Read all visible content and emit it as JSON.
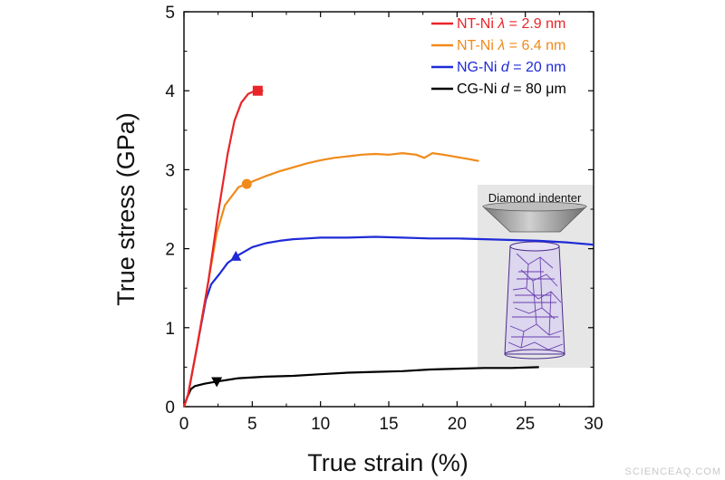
{
  "chart_data": {
    "type": "line",
    "xlabel": "True strain (%)",
    "ylabel": "True stress (GPa)",
    "xlim": [
      0,
      30
    ],
    "ylim": [
      0,
      5
    ],
    "xticks": [
      0,
      5,
      10,
      15,
      20,
      25,
      30
    ],
    "yticks": [
      0,
      1,
      2,
      3,
      4,
      5
    ],
    "grid": false,
    "legend_position": "top-right",
    "series": [
      {
        "name_parts": [
          "NT-Ni ",
          "λ",
          " = 2.9 nm"
        ],
        "color": "#e8262a",
        "marker": "square",
        "marker_at": [
          5.4,
          4.0
        ],
        "points": [
          [
            0,
            0
          ],
          [
            0.3,
            0.15
          ],
          [
            1,
            0.8
          ],
          [
            1.8,
            1.6
          ],
          [
            2.5,
            2.45
          ],
          [
            3.2,
            3.2
          ],
          [
            3.7,
            3.62
          ],
          [
            4.2,
            3.85
          ],
          [
            4.7,
            3.96
          ],
          [
            5.2,
            4.0
          ],
          [
            5.8,
            4.0
          ]
        ]
      },
      {
        "name_parts": [
          "NT-Ni ",
          "λ",
          " = 6.4 nm"
        ],
        "color": "#f08a1a",
        "marker": "circle",
        "marker_at": [
          4.6,
          2.82
        ],
        "points": [
          [
            0,
            0
          ],
          [
            0.3,
            0.15
          ],
          [
            1,
            0.8
          ],
          [
            1.8,
            1.6
          ],
          [
            2.4,
            2.2
          ],
          [
            3.0,
            2.55
          ],
          [
            4.0,
            2.78
          ],
          [
            5,
            2.85
          ],
          [
            6,
            2.92
          ],
          [
            7,
            2.98
          ],
          [
            8,
            3.03
          ],
          [
            9,
            3.08
          ],
          [
            10,
            3.12
          ],
          [
            11,
            3.15
          ],
          [
            12,
            3.17
          ],
          [
            13,
            3.19
          ],
          [
            14,
            3.2
          ],
          [
            15,
            3.19
          ],
          [
            16,
            3.21
          ],
          [
            17,
            3.19
          ],
          [
            17.6,
            3.15
          ],
          [
            18.2,
            3.21
          ],
          [
            19,
            3.19
          ],
          [
            20,
            3.16
          ],
          [
            21,
            3.13
          ],
          [
            21.6,
            3.11
          ]
        ]
      },
      {
        "name_parts": [
          "NG-Ni ",
          "d",
          " = 20 nm"
        ],
        "color": "#1f2ad6",
        "marker": "triangle-up",
        "marker_at": [
          3.8,
          1.9
        ],
        "points": [
          [
            0,
            0
          ],
          [
            0.3,
            0.15
          ],
          [
            1,
            0.8
          ],
          [
            1.6,
            1.35
          ],
          [
            2.0,
            1.55
          ],
          [
            2.6,
            1.68
          ],
          [
            3.2,
            1.82
          ],
          [
            4,
            1.92
          ],
          [
            5,
            2.02
          ],
          [
            6,
            2.07
          ],
          [
            7,
            2.1
          ],
          [
            8,
            2.12
          ],
          [
            9,
            2.13
          ],
          [
            10,
            2.14
          ],
          [
            12,
            2.14
          ],
          [
            14,
            2.15
          ],
          [
            16,
            2.14
          ],
          [
            18,
            2.13
          ],
          [
            20,
            2.13
          ],
          [
            22,
            2.12
          ],
          [
            24,
            2.11
          ],
          [
            26,
            2.1
          ],
          [
            28,
            2.08
          ],
          [
            30,
            2.05
          ]
        ]
      },
      {
        "name_parts": [
          "CG-Ni ",
          "d",
          " = 80 μm"
        ],
        "color": "#000000",
        "marker": "triangle-down",
        "marker_at": [
          2.4,
          0.31
        ],
        "points": [
          [
            0,
            0
          ],
          [
            0.2,
            0.1
          ],
          [
            0.5,
            0.22
          ],
          [
            0.8,
            0.26
          ],
          [
            1.5,
            0.29
          ],
          [
            2.5,
            0.32
          ],
          [
            4,
            0.36
          ],
          [
            6,
            0.38
          ],
          [
            8,
            0.39
          ],
          [
            10,
            0.41
          ],
          [
            12,
            0.43
          ],
          [
            14,
            0.44
          ],
          [
            16,
            0.45
          ],
          [
            18,
            0.47
          ],
          [
            20,
            0.48
          ],
          [
            22,
            0.49
          ],
          [
            24,
            0.49
          ],
          [
            26,
            0.5
          ]
        ]
      }
    ]
  },
  "inset": {
    "label": "Diamond indenter"
  },
  "watermark": "SCIENCEAQ.COM"
}
